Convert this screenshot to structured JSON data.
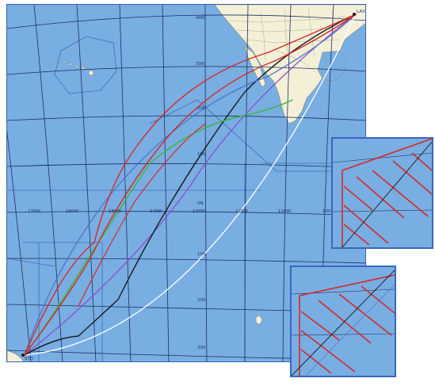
{
  "map": {
    "longitude_labels": [
      "170W",
      "160W",
      "150W",
      "140W",
      "130W",
      "120W",
      "110W",
      "100"
    ],
    "latitude_labels": [
      "40N",
      "30N",
      "20N",
      "10N",
      "0N",
      "10S",
      "20S",
      "30S"
    ],
    "airport_codes": [
      "LAX",
      "SYD"
    ],
    "route_colors": [
      "#d42a2a",
      "#3cb43c",
      "#8a4fd0",
      "#1a1a1a",
      "#ffffff"
    ],
    "colors": {
      "ocean": "#78aee2",
      "land": "#f4f0d8",
      "grid": "#1f2f5e",
      "border": "#3a5fb4"
    }
  },
  "insets": [
    {
      "name": "inset-top"
    },
    {
      "name": "inset-bottom"
    }
  ]
}
